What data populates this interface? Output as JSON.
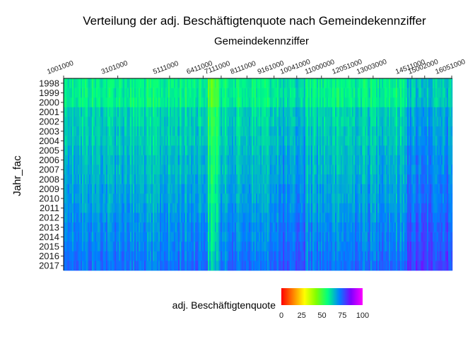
{
  "chart_data": {
    "type": "heatmap",
    "title": "Verteilung der adj. Beschäftigtenquote nach Gemeindekennziffer",
    "xlabel": "Gemeindekennziffer",
    "ylabel": "Jahr_fac",
    "x_axis_position": "top",
    "y_categories": [
      "1998",
      "1999",
      "2000",
      "2001",
      "2002",
      "2003",
      "2004",
      "2005",
      "2006",
      "2007",
      "2008",
      "2009",
      "2010",
      "2011",
      "2012",
      "2013",
      "2014",
      "2015",
      "2016",
      "2017"
    ],
    "x_ticks": [
      {
        "label": "1001000",
        "value": 1001000
      },
      {
        "label": "3101000",
        "value": 3101000
      },
      {
        "label": "5111000",
        "value": 5111000
      },
      {
        "label": "6411000",
        "value": 6411000
      },
      {
        "label": "7111000",
        "value": 7111000
      },
      {
        "label": "8111000",
        "value": 8111000
      },
      {
        "label": "9161000",
        "value": 9161000
      },
      {
        "label": "10041000",
        "value": 10041000
      },
      {
        "label": "11000000",
        "value": 11000000
      },
      {
        "label": "12051000",
        "value": 12051000
      },
      {
        "label": "13003000",
        "value": 13003000
      },
      {
        "label": "14511000",
        "value": 14511000
      },
      {
        "label": "15002000",
        "value": 15002000
      },
      {
        "label": "16051000",
        "value": 16051000
      }
    ],
    "legend": {
      "title": "adj. Beschäftigtenquote",
      "placement": "bottom",
      "range": [
        0,
        100
      ],
      "ticks": [
        "0",
        "25",
        "50",
        "75",
        "100"
      ],
      "colors": [
        "#ff0000",
        "#ff8000",
        "#ffff00",
        "#80ff00",
        "#00ff80",
        "#0080ff",
        "#8000ff",
        "#ff00ff"
      ]
    },
    "value_summary": {
      "1998": 58,
      "1999": 58,
      "2000": 58,
      "2001": 62,
      "2002": 62,
      "2003": 63,
      "2004": 63,
      "2005": 64,
      "2006": 65,
      "2007": 65,
      "2008": 66,
      "2009": 67,
      "2010": 67,
      "2011": 68,
      "2012": 69,
      "2013": 70,
      "2014": 70,
      "2015": 71,
      "2016": 72,
      "2017": 73
    },
    "grid": false
  }
}
